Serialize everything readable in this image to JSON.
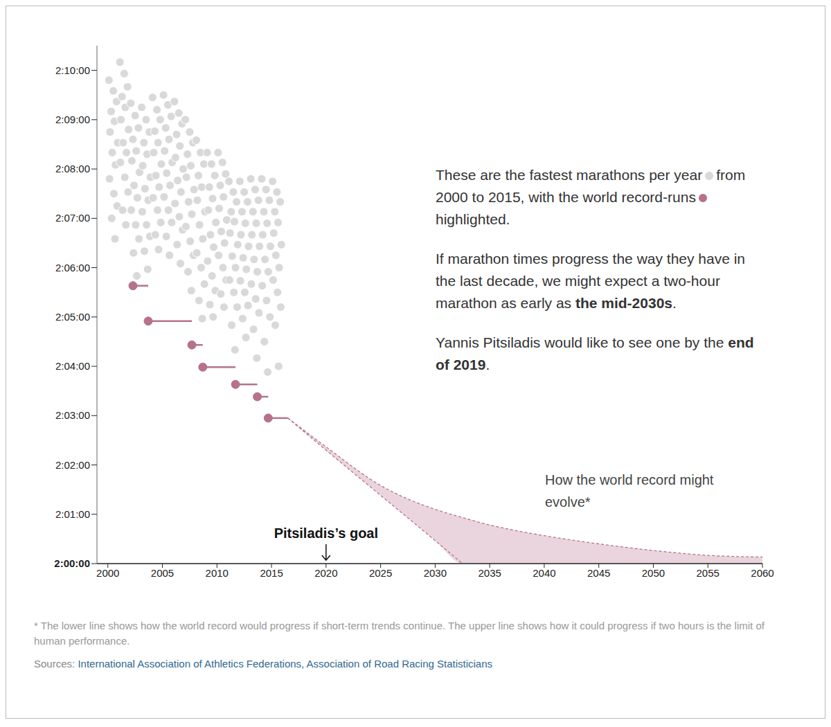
{
  "chart_data": {
    "type": "scatter",
    "xlim": [
      1999,
      2060
    ],
    "xticks": [
      2000,
      2005,
      2010,
      2015,
      2020,
      2025,
      2030,
      2035,
      2040,
      2045,
      2050,
      2055,
      2060
    ],
    "ylim": [
      7200,
      7830
    ],
    "yticks": [
      {
        "value": 7200,
        "label": "2:00:00"
      },
      {
        "value": 7260,
        "label": "2:01:00"
      },
      {
        "value": 7320,
        "label": "2:02:00"
      },
      {
        "value": 7380,
        "label": "2:03:00"
      },
      {
        "value": 7440,
        "label": "2:04:00"
      },
      {
        "value": 7500,
        "label": "2:05:00"
      },
      {
        "value": 7560,
        "label": "2:06:00"
      },
      {
        "value": 7620,
        "label": "2:07:00"
      },
      {
        "value": 7680,
        "label": "2:08:00"
      },
      {
        "value": 7740,
        "label": "2:09:00"
      },
      {
        "value": 7800,
        "label": "2:10:00"
      }
    ],
    "grid": false,
    "series": [
      {
        "type": "area",
        "color": "#ead5de",
        "x": [
          2016.5,
          2020,
          2025,
          2030,
          2032.5,
          2035,
          2040,
          2045,
          2050,
          2055,
          2060
        ],
        "low": [
          7377,
          7338,
          7283,
          7228,
          7200,
          7200,
          7200,
          7200,
          7200,
          7200,
          7200
        ],
        "high": [
          7377,
          7342,
          7295,
          7266,
          7256,
          7247,
          7234,
          7224,
          7216,
          7210,
          7208
        ]
      },
      {
        "type": "line",
        "line_style": "dashed",
        "color": "#b5728a",
        "x": [
          2016.5,
          2020,
          2025,
          2030,
          2032.5,
          2035,
          2040,
          2045,
          2050,
          2055,
          2060
        ],
        "values": [
          7377,
          7342,
          7295,
          7266,
          7256,
          7247,
          7234,
          7224,
          7216,
          7210,
          7208
        ]
      },
      {
        "type": "line",
        "line_style": "dashed",
        "color": "#b5728a",
        "x": [
          2016.5,
          2020,
          2025,
          2030,
          2032.5
        ],
        "values": [
          7377,
          7338,
          7283,
          7228,
          7200
        ]
      },
      {
        "type": "scatter",
        "marker": "circle",
        "color": "#d9d9d9",
        "x": [
          2000.1,
          2000.5,
          2000.8,
          2000.3,
          2000.6,
          2000.2,
          2000.9,
          2000.4,
          2000.7,
          2000.15,
          2000.55,
          2000.85,
          2000.35,
          2000.65,
          2001.1,
          2001.5,
          2001.8,
          2001.3,
          2001.6,
          2001.2,
          2001.9,
          2001.4,
          2001.7,
          2001.15,
          2001.55,
          2001.85,
          2001.35,
          2001.65,
          2002.1,
          2002.5,
          2002.8,
          2002.3,
          2002.6,
          2002.2,
          2002.9,
          2002.4,
          2002.7,
          2002.15,
          2002.55,
          2002.85,
          2002.35,
          2002.65,
          2003.1,
          2003.5,
          2003.8,
          2003.3,
          2003.6,
          2003.2,
          2003.9,
          2003.4,
          2003.7,
          2003.15,
          2003.55,
          2003.85,
          2003.35,
          2003.65,
          2004.1,
          2004.5,
          2004.8,
          2004.3,
          2004.6,
          2004.2,
          2004.9,
          2004.4,
          2004.7,
          2004.15,
          2004.55,
          2004.85,
          2004.35,
          2004.65,
          2005.1,
          2005.5,
          2005.8,
          2005.3,
          2005.6,
          2005.2,
          2005.9,
          2005.4,
          2005.7,
          2005.15,
          2005.55,
          2005.85,
          2005.35,
          2005.65,
          2006.1,
          2006.5,
          2006.8,
          2006.3,
          2006.6,
          2006.2,
          2006.9,
          2006.4,
          2006.7,
          2006.15,
          2006.55,
          2006.85,
          2006.35,
          2006.65,
          2007.1,
          2007.5,
          2007.8,
          2007.3,
          2007.6,
          2007.2,
          2007.9,
          2007.4,
          2007.7,
          2007.15,
          2007.55,
          2007.85,
          2007.35,
          2007.65,
          2008.1,
          2008.5,
          2008.8,
          2008.3,
          2008.6,
          2008.2,
          2008.9,
          2008.4,
          2008.7,
          2008.15,
          2008.55,
          2008.85,
          2008.35,
          2008.65,
          2009.1,
          2009.5,
          2009.8,
          2009.3,
          2009.6,
          2009.2,
          2009.9,
          2009.4,
          2009.7,
          2009.15,
          2009.55,
          2009.85,
          2009.35,
          2009.65,
          2010.1,
          2010.5,
          2010.8,
          2010.3,
          2010.6,
          2010.2,
          2010.9,
          2010.4,
          2010.7,
          2010.15,
          2010.55,
          2010.85,
          2010.35,
          2010.65,
          2011.1,
          2011.5,
          2011.8,
          2011.3,
          2011.6,
          2011.2,
          2011.9,
          2011.4,
          2011.7,
          2011.15,
          2011.55,
          2011.85,
          2011.35,
          2011.65,
          2012.1,
          2012.5,
          2012.8,
          2012.3,
          2012.6,
          2012.2,
          2012.9,
          2012.4,
          2012.7,
          2012.15,
          2012.55,
          2012.85,
          2012.35,
          2012.65,
          2013.1,
          2013.5,
          2013.8,
          2013.3,
          2013.6,
          2013.2,
          2013.9,
          2013.4,
          2013.7,
          2013.15,
          2013.55,
          2013.85,
          2013.35,
          2013.65,
          2014.1,
          2014.5,
          2014.8,
          2014.3,
          2014.6,
          2014.2,
          2014.9,
          2014.4,
          2014.7,
          2014.15,
          2014.55,
          2014.85,
          2014.35,
          2014.65,
          2015.1,
          2015.5,
          2015.8,
          2015.3,
          2015.6,
          2015.2,
          2015.9,
          2015.4,
          2015.7,
          2015.15,
          2015.55,
          2015.85,
          2015.35,
          2015.65
        ],
        "values": [
          7788,
          7775,
          7762,
          7750,
          7738,
          7725,
          7712,
          7700,
          7685,
          7668,
          7650,
          7635,
          7620,
          7595,
          7810,
          7796,
          7780,
          7768,
          7755,
          7740,
          7728,
          7712,
          7700,
          7688,
          7670,
          7652,
          7630,
          7612,
          7760,
          7745,
          7730,
          7716,
          7702,
          7690,
          7676,
          7660,
          7645,
          7630,
          7612,
          7595,
          7578,
          7550,
          7755,
          7740,
          7725,
          7712,
          7698,
          7684,
          7670,
          7656,
          7642,
          7628,
          7612,
          7598,
          7580,
          7558,
          7767,
          7752,
          7740,
          7726,
          7712,
          7700,
          7686,
          7672,
          7658,
          7645,
          7630,
          7615,
          7600,
          7582,
          7770,
          7758,
          7744,
          7730,
          7716,
          7702,
          7688,
          7675,
          7660,
          7646,
          7630,
          7615,
          7598,
          7575,
          7762,
          7748,
          7735,
          7722,
          7708,
          7694,
          7680,
          7666,
          7652,
          7638,
          7622,
          7606,
          7588,
          7565,
          7740,
          7725,
          7712,
          7698,
          7684,
          7670,
          7655,
          7640,
          7625,
          7610,
          7592,
          7575,
          7555,
          7532,
          7715,
          7700,
          7686,
          7672,
          7658,
          7642,
          7628,
          7612,
          7595,
          7578,
          7560,
          7540,
          7520,
          7498,
          7700,
          7686,
          7672,
          7658,
          7644,
          7630,
          7615,
          7600,
          7585,
          7568,
          7550,
          7532,
          7515,
          7500,
          7700,
          7688,
          7674,
          7660,
          7646,
          7632,
          7618,
          7604,
          7590,
          7575,
          7560,
          7545,
          7528,
          7512,
          7665,
          7652,
          7640,
          7628,
          7616,
          7602,
          7588,
          7574,
          7560,
          7545,
          7530,
          7512,
          7490,
          7460,
          7665,
          7652,
          7640,
          7628,
          7614,
          7600,
          7586,
          7572,
          7558,
          7544,
          7530,
          7514,
          7498,
          7475,
          7668,
          7655,
          7642,
          7628,
          7614,
          7600,
          7586,
          7570,
          7555,
          7540,
          7522,
          7505,
          7485,
          7450,
          7668,
          7655,
          7642,
          7628,
          7614,
          7600,
          7586,
          7570,
          7555,
          7538,
          7520,
          7500,
          7470,
          7433,
          7665,
          7652,
          7640,
          7628,
          7615,
          7602,
          7588,
          7575,
          7560,
          7545,
          7530,
          7512,
          7490,
          7440
        ]
      },
      {
        "type": "scatter",
        "marker": "circle",
        "color": "#b5728a",
        "x": [
          2002.3,
          2003.7,
          2007.7,
          2008.7,
          2011.7,
          2013.7,
          2014.7
        ],
        "x_end": [
          2003.7,
          2007.7,
          2008.7,
          2011.7,
          2013.7,
          2014.7,
          2016.5
        ],
        "values": [
          7538,
          7495,
          7466,
          7439,
          7418,
          7403,
          7377
        ]
      }
    ],
    "annotations": {
      "intro": [
        "These are the fastest marathons per year",
        "from 2000 to 2015, with the world record-runs",
        "highlighted."
      ],
      "forecast": {
        "text": "If marathon times progress the way they have in the last decade, we might expect a two-hour marathon as early as",
        "emphasis": "the mid-2030s",
        "end": "."
      },
      "wish": {
        "text": "Yannis Pitsiladis would like to see one by the",
        "emphasis": "end of 2019",
        "end": "."
      },
      "projection_label": "How the world record might evolve*",
      "goal": {
        "label": "Pitsiladis’s goal",
        "x": 2020
      }
    },
    "footnote": "* The lower line shows how the world record would progress if short-term trends continue. The upper line shows how it could progress if two hours is the limit of human performance.",
    "sources": {
      "label": "Sources:",
      "items": [
        "International Association of Athletics Federations,",
        "Association of Road Racing Statisticians"
      ]
    }
  }
}
